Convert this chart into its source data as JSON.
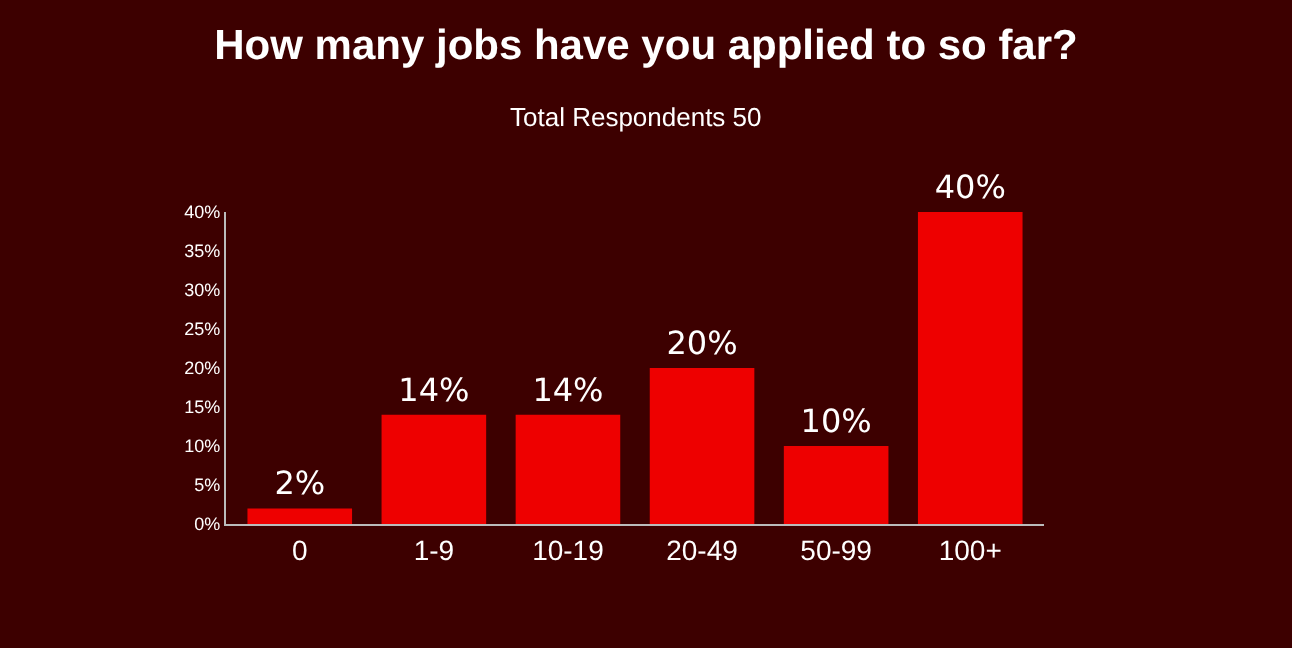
{
  "chart_data": {
    "type": "bar",
    "title": "How many jobs have you applied to so far?",
    "subtitle": "Total Respondents 50",
    "categories": [
      "0",
      "1-9",
      "10-19",
      "20-49",
      "50-99",
      "100+"
    ],
    "values": [
      2,
      14,
      14,
      20,
      10,
      40
    ],
    "value_labels": [
      "2%",
      "14%",
      "14%",
      "20%",
      "10%",
      "40%"
    ],
    "color": "#ee0000",
    "ylim": [
      0,
      40
    ],
    "yticks": [
      {
        "value": 0,
        "label": "0%"
      },
      {
        "value": 5,
        "label": "5%"
      },
      {
        "value": 10,
        "label": "10%"
      },
      {
        "value": 15,
        "label": "15%"
      },
      {
        "value": 20,
        "label": "20%"
      },
      {
        "value": 25,
        "label": "25%"
      },
      {
        "value": 30,
        "label": "30%"
      },
      {
        "value": 35,
        "label": "35%"
      },
      {
        "value": 40,
        "label": "40%"
      }
    ],
    "grid": false
  }
}
